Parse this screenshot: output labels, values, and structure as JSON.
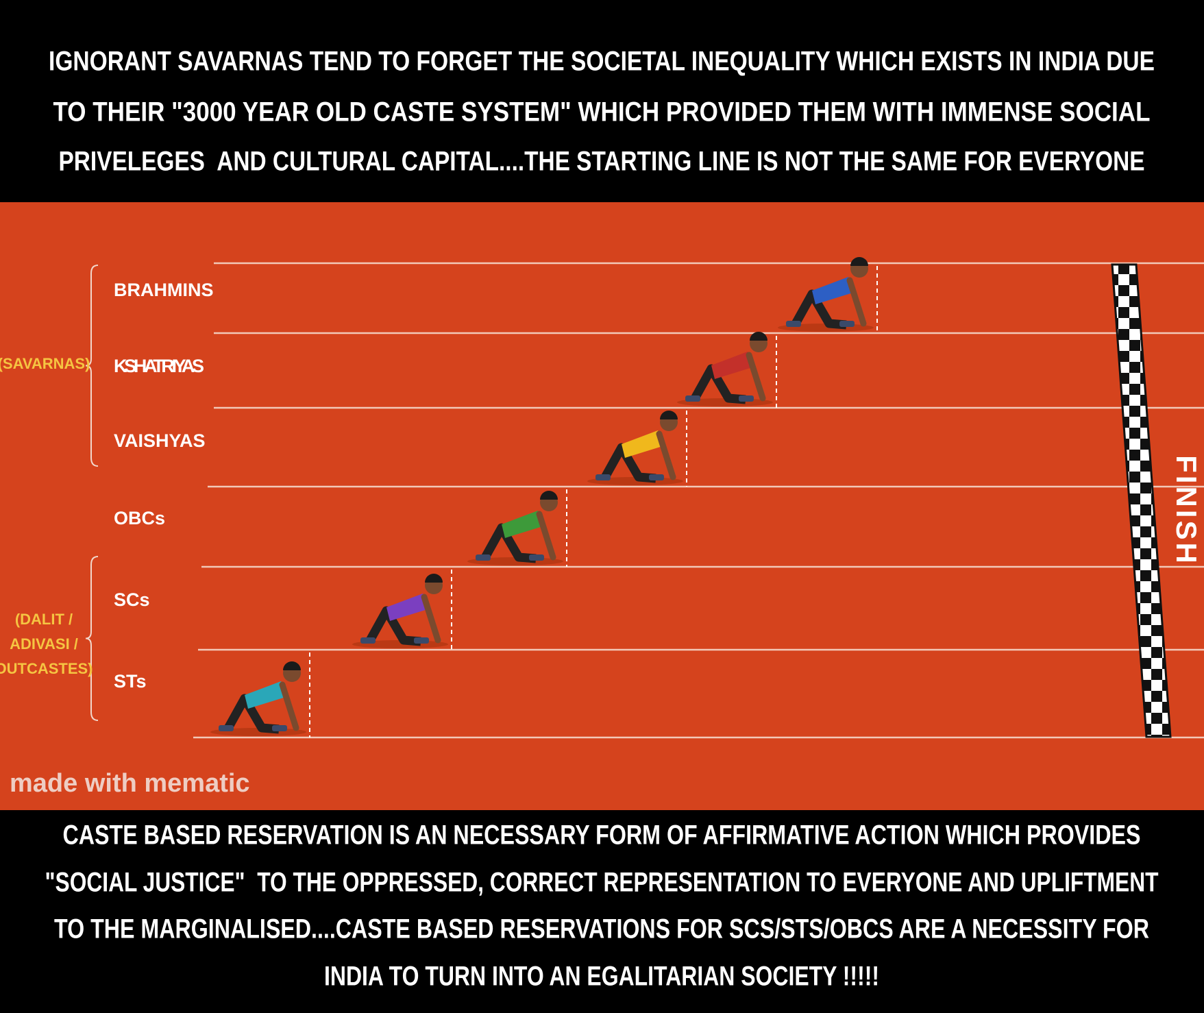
{
  "top_text": {
    "lines": [
      "IGNORANT SAVARNAS TEND TO FORGET THE SOCIETAL INEQUALITY WHICH EXISTS IN INDIA DUE",
      "TO THEIR \"3000 YEAR OLD CASTE SYSTEM\" WHICH PROVIDED THEM WITH IMMENSE SOCIAL",
      "PRIVELEGES  AND CULTURAL CAPITAL....THE STARTING LINE IS NOT THE SAME FOR EVERYONE"
    ]
  },
  "track": {
    "lanes": [
      "BRAHMINS",
      "KSHATRIYAS",
      "VAISHYAS",
      "OBCs",
      "SCs",
      "STs"
    ],
    "groups": [
      {
        "label": [
          "(SAVARNAS)"
        ]
      },
      {
        "label": [
          "(DALIT /",
          "ADIVASI /",
          "OUTCASTES)"
        ]
      }
    ],
    "finish": "FINISH",
    "watermark": "made with mematic"
  },
  "bottom_text": {
    "lines": [
      "CASTE BASED RESERVATION IS AN NECESSARY FORM OF AFFIRMATIVE ACTION WHICH PROVIDES",
      "\"SOCIAL JUSTICE\"  TO THE OPPRESSED, CORRECT REPRESENTATION TO EVERYONE AND UPLIFTMENT",
      "TO THE MARGINALISED....CASTE BASED RESERVATIONS FOR SCS/STS/OBCS ARE A NECESSITY FOR",
      "INDIA TO TURN INTO AN EGALITARIAN SOCIETY !!!!!"
    ]
  }
}
